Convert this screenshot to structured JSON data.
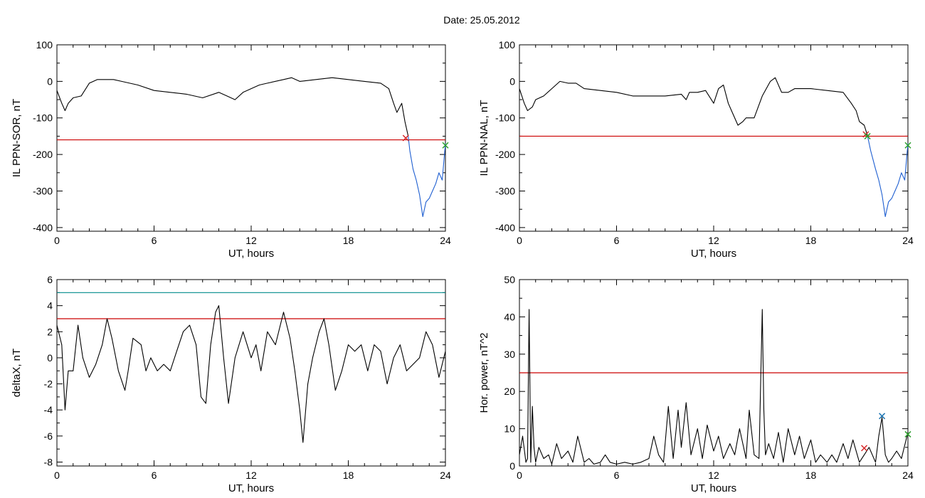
{
  "title": "Date:  25.05.2012",
  "colors": {
    "axis": "#000000",
    "trace": "#000000",
    "threshold_red": "#cc0000",
    "threshold_teal": "#008b8b",
    "storm_blue": "#1f5fd1",
    "marker_green": "#2ca02c",
    "marker_red": "#d62728",
    "marker_blue": "#1f77b4"
  },
  "chart_data": [
    {
      "type": "line",
      "xlabel": "UT, hours",
      "ylabel": "IL PPN-SOR, nT",
      "xlim": [
        0,
        24
      ],
      "ylim": [
        -410,
        100
      ],
      "xticks": [
        0,
        6,
        12,
        18,
        24
      ],
      "yticks": [
        100,
        0,
        -100,
        -200,
        -300,
        -400
      ],
      "series": [
        {
          "color": "#000000",
          "x": [
            0,
            0.3,
            0.5,
            0.7,
            1,
            1.5,
            2,
            2.5,
            3,
            3.5,
            4,
            5,
            6,
            7,
            8,
            9,
            10,
            10.5,
            11,
            11.5,
            12,
            12.5,
            13,
            14,
            14.5,
            15,
            16,
            17,
            18,
            19,
            20,
            20.5,
            20.8,
            21,
            21.3,
            21.5,
            21.7
          ],
          "y": [
            -25,
            -60,
            -80,
            -60,
            -45,
            -40,
            -5,
            5,
            5,
            5,
            0,
            -10,
            -25,
            -30,
            -35,
            -45,
            -30,
            -40,
            -50,
            -30,
            -20,
            -10,
            -5,
            5,
            10,
            0,
            5,
            10,
            5,
            0,
            -5,
            -20,
            -60,
            -85,
            -60,
            -110,
            -150
          ]
        },
        {
          "color": "#1f5fd1",
          "x": [
            21.7,
            21.8,
            22,
            22.2,
            22.4,
            22.6,
            22.8,
            23,
            23.2,
            23.4,
            23.6,
            23.8,
            24
          ],
          "y": [
            -150,
            -190,
            -240,
            -270,
            -310,
            -370,
            -330,
            -320,
            -300,
            -280,
            -250,
            -270,
            -170
          ]
        }
      ],
      "hlines": [
        {
          "y": -160,
          "color": "#cc0000"
        }
      ],
      "markers": [
        {
          "x": 21.55,
          "y": -155,
          "color": "#d62728"
        },
        {
          "x": 24,
          "y": -175,
          "color": "#2ca02c"
        }
      ]
    },
    {
      "type": "line",
      "xlabel": "UT, hours",
      "ylabel": "IL PPN-NAL, nT",
      "xlim": [
        0,
        24
      ],
      "ylim": [
        -410,
        100
      ],
      "xticks": [
        0,
        6,
        12,
        18,
        24
      ],
      "yticks": [
        100,
        0,
        -100,
        -200,
        -300,
        -400
      ],
      "series": [
        {
          "color": "#000000",
          "x": [
            0,
            0.3,
            0.5,
            0.8,
            1,
            1.5,
            2,
            2.5,
            3,
            3.5,
            4,
            5,
            6,
            7,
            8,
            9,
            10,
            10.3,
            10.5,
            11,
            11.5,
            12,
            12.3,
            12.6,
            12.9,
            13.2,
            13.5,
            13.8,
            14,
            14.5,
            15,
            15.5,
            15.8,
            16.2,
            16.6,
            17,
            18,
            19,
            20,
            20.5,
            20.8,
            21,
            21.3,
            21.5
          ],
          "y": [
            -20,
            -60,
            -80,
            -70,
            -50,
            -40,
            -20,
            0,
            -5,
            -5,
            -20,
            -25,
            -30,
            -40,
            -40,
            -40,
            -35,
            -50,
            -30,
            -30,
            -25,
            -60,
            -20,
            -10,
            -60,
            -90,
            -120,
            -110,
            -100,
            -100,
            -40,
            0,
            10,
            -30,
            -30,
            -20,
            -20,
            -25,
            -30,
            -60,
            -80,
            -110,
            -120,
            -148
          ]
        },
        {
          "color": "#1f5fd1",
          "x": [
            21.5,
            21.7,
            22,
            22.2,
            22.4,
            22.6,
            22.8,
            23,
            23.2,
            23.4,
            23.6,
            23.8,
            24
          ],
          "y": [
            -148,
            -190,
            -240,
            -270,
            -310,
            -370,
            -330,
            -320,
            -300,
            -280,
            -250,
            -270,
            -170
          ]
        }
      ],
      "hlines": [
        {
          "y": -150,
          "color": "#cc0000"
        }
      ],
      "markers": [
        {
          "x": 21.4,
          "y": -145,
          "color": "#d62728"
        },
        {
          "x": 21.5,
          "y": -150,
          "color": "#2ca02c"
        },
        {
          "x": 24,
          "y": -175,
          "color": "#2ca02c"
        }
      ]
    },
    {
      "type": "line",
      "xlabel": "UT, hours",
      "ylabel": "deltaX, nT",
      "xlim": [
        0,
        24
      ],
      "ylim": [
        -8.3,
        6
      ],
      "xticks": [
        0,
        6,
        12,
        18,
        24
      ],
      "yticks": [
        6,
        4,
        2,
        0,
        -2,
        -4,
        -6,
        -8
      ],
      "series": [
        {
          "color": "#000000",
          "x": [
            0,
            0.3,
            0.5,
            0.7,
            1,
            1.3,
            1.6,
            2,
            2.4,
            2.8,
            3.1,
            3.4,
            3.8,
            4.2,
            4.4,
            4.7,
            5.2,
            5.5,
            5.8,
            6.2,
            6.6,
            7,
            7.4,
            7.8,
            8.2,
            8.6,
            8.9,
            9.2,
            9.5,
            9.8,
            10,
            10.3,
            10.6,
            11,
            11.5,
            12,
            12.3,
            12.6,
            13,
            13.5,
            14,
            14.4,
            14.7,
            15,
            15.2,
            15.5,
            15.8,
            16.2,
            16.5,
            16.8,
            17.2,
            17.6,
            18,
            18.4,
            18.8,
            19.2,
            19.6,
            20,
            20.4,
            20.8,
            21.2,
            21.6,
            22,
            22.4,
            22.8,
            23.2,
            23.6,
            24
          ],
          "y": [
            2.5,
            1,
            -4,
            -1,
            -1,
            2.5,
            0,
            -1.5,
            -0.5,
            1,
            3,
            1.5,
            -1,
            -2.5,
            -1,
            1.5,
            1,
            -1,
            0,
            -1,
            -0.5,
            -1,
            0.5,
            2,
            2.5,
            1,
            -3,
            -3.5,
            1,
            3.5,
            4,
            0,
            -3.5,
            0,
            2,
            0,
            1,
            -1,
            2,
            1,
            3.5,
            1.5,
            -1,
            -4,
            -6.5,
            -2,
            0,
            2,
            3,
            1,
            -2.5,
            -1,
            1,
            0.5,
            1,
            -1,
            1,
            0.5,
            -2,
            0,
            1,
            -1,
            -0.5,
            0,
            2,
            1,
            -1.5,
            0.5
          ]
        }
      ],
      "hlines": [
        {
          "y": 5,
          "color": "#008b8b"
        },
        {
          "y": 3,
          "color": "#cc0000"
        }
      ],
      "markers": []
    },
    {
      "type": "line",
      "xlabel": "UT, hours",
      "ylabel": "Hor. power, nT^2",
      "xlim": [
        0,
        24
      ],
      "ylim": [
        0,
        50
      ],
      "xticks": [
        0,
        6,
        12,
        18,
        24
      ],
      "yticks": [
        50,
        40,
        30,
        20,
        10,
        0
      ],
      "series": [
        {
          "color": "#000000",
          "x": [
            0,
            0.2,
            0.4,
            0.5,
            0.6,
            0.7,
            0.8,
            0.9,
            1,
            1.2,
            1.5,
            1.8,
            2,
            2.3,
            2.6,
            3,
            3.3,
            3.6,
            4,
            4.3,
            4.6,
            5,
            5.3,
            5.6,
            6,
            6.5,
            7,
            7.5,
            8,
            8.3,
            8.6,
            8.9,
            9.2,
            9.5,
            9.8,
            10,
            10.3,
            10.6,
            11,
            11.3,
            11.6,
            12,
            12.3,
            12.6,
            13,
            13.3,
            13.6,
            14,
            14.2,
            14.5,
            14.8,
            15,
            15.1,
            15.2,
            15.4,
            15.7,
            16,
            16.3,
            16.6,
            17,
            17.3,
            17.6,
            18,
            18.3,
            18.6,
            19,
            19.3,
            19.6,
            20,
            20.3,
            20.6,
            21,
            21.3,
            21.6,
            22,
            22.2,
            22.4,
            22.6,
            22.8,
            23,
            23.3,
            23.6,
            24
          ],
          "y": [
            3,
            8,
            1,
            2,
            42,
            1,
            16,
            5,
            1,
            5,
            2,
            3,
            0.5,
            6,
            2,
            4,
            1,
            8,
            1,
            2,
            0.5,
            1,
            3,
            1,
            0.5,
            1,
            0.5,
            1,
            2,
            8,
            3,
            1,
            16,
            2,
            15,
            5,
            17,
            3,
            10,
            2,
            11,
            4,
            8,
            2,
            6,
            3,
            10,
            2,
            15,
            3,
            2,
            42,
            15,
            3,
            6,
            2,
            9,
            1,
            10,
            3,
            8,
            2,
            7,
            1,
            3,
            1,
            3,
            1,
            6,
            2,
            7,
            1,
            3,
            5,
            1,
            8,
            13,
            3,
            1,
            2,
            4,
            2,
            9
          ]
        }
      ],
      "hlines": [
        {
          "y": 25,
          "color": "#cc0000"
        }
      ],
      "markers": [
        {
          "x": 21.3,
          "y": 4.8,
          "color": "#d62728"
        },
        {
          "x": 22.4,
          "y": 13.4,
          "color": "#1f77b4"
        },
        {
          "x": 24,
          "y": 8.5,
          "color": "#2ca02c"
        }
      ]
    }
  ]
}
